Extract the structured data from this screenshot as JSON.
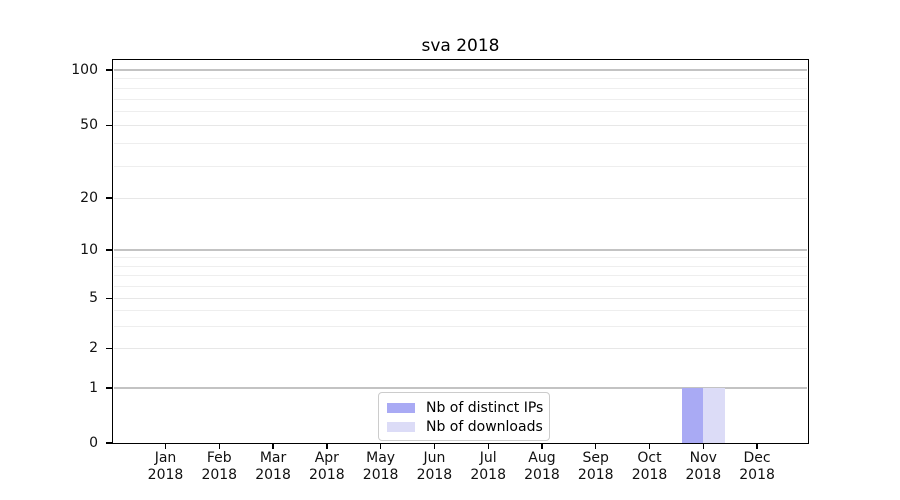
{
  "chart_data": {
    "type": "bar",
    "title": "sva 2018",
    "categories": [
      "Jan 2018",
      "Feb 2018",
      "Mar 2018",
      "Apr 2018",
      "May 2018",
      "Jun 2018",
      "Jul 2018",
      "Aug 2018",
      "Sep 2018",
      "Oct 2018",
      "Nov 2018",
      "Dec 2018"
    ],
    "series": [
      {
        "name": "Nb of distinct IPs",
        "color": "#a9aaf4",
        "values": [
          0,
          0,
          0,
          0,
          0,
          0,
          0,
          0,
          0,
          0,
          1,
          0
        ]
      },
      {
        "name": "Nb of downloads",
        "color": "#dcdcf7",
        "values": [
          0,
          0,
          0,
          0,
          0,
          0,
          0,
          0,
          0,
          0,
          1,
          0
        ]
      }
    ],
    "xlabel": "",
    "ylabel": "",
    "yscale": "log above 1, linear 0-1 (symlog-like)",
    "ylim": [
      0,
      113
    ],
    "grid": "horizontal, major + minor",
    "legend_position": "inside bottom-center"
  },
  "y_axis": {
    "ticks": [
      {
        "value": 100,
        "label": "100"
      },
      {
        "value": 50,
        "label": "50"
      },
      {
        "value": 20,
        "label": "20"
      },
      {
        "value": 10,
        "label": "10"
      },
      {
        "value": 5,
        "label": "5"
      },
      {
        "value": 2,
        "label": "2"
      },
      {
        "value": 1,
        "label": "1"
      },
      {
        "value": 0,
        "label": "0"
      }
    ],
    "minor_gridline_values": [
      3,
      4,
      6,
      7,
      8,
      9,
      30,
      40,
      60,
      70,
      80,
      90
    ]
  },
  "legend": {
    "items": [
      {
        "label": "Nb of distinct IPs",
        "color": "#a9aaf4"
      },
      {
        "label": "Nb of downloads",
        "color": "#dcdcf7"
      }
    ]
  },
  "colors": {
    "background": "#ffffff",
    "spine": "#000000",
    "grid_major": "#c3c3c3",
    "grid_minor": "#e7e7e7",
    "bar_distinct_ips": "#a9aaf4",
    "bar_downloads": "#dcdcf7"
  }
}
